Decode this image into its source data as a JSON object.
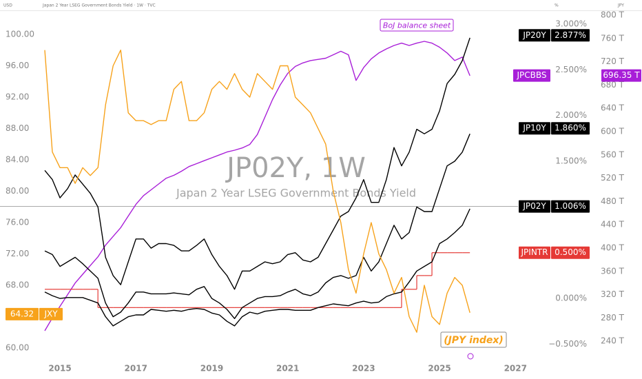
{
  "header": {
    "symbol_text": "Japan 2 Year LSEG Government Bonds Yield · 1W · TVC",
    "left_unit": "USD",
    "mid_unit": "%",
    "right_unit": "JPY"
  },
  "chart_data": {
    "type": "line",
    "title": "JP02Y, 1W",
    "subtitle": "Japan 2 Year LSEG Government Bonds Yield",
    "grid": false,
    "x": [
      2014.6,
      2014.8,
      2015.0,
      2015.2,
      2015.4,
      2015.6,
      2015.8,
      2016.0,
      2016.2,
      2016.4,
      2016.6,
      2016.8,
      2017.0,
      2017.2,
      2017.4,
      2017.6,
      2017.8,
      2018.0,
      2018.2,
      2018.4,
      2018.6,
      2018.8,
      2019.0,
      2019.2,
      2019.4,
      2019.6,
      2019.8,
      2020.0,
      2020.2,
      2020.4,
      2020.6,
      2020.8,
      2021.0,
      2021.2,
      2021.4,
      2021.6,
      2021.8,
      2022.0,
      2022.2,
      2022.4,
      2022.6,
      2022.8,
      2023.0,
      2023.2,
      2023.4,
      2023.6,
      2023.8,
      2024.0,
      2024.2,
      2024.4,
      2024.6,
      2024.8,
      2025.0,
      2025.2,
      2025.4,
      2025.6,
      2025.8
    ],
    "xlim": [
      2013.42,
      2028.12
    ],
    "xticks": [
      2015,
      2017,
      2019,
      2021,
      2023,
      2025,
      2027
    ],
    "ylim": [
      58.68,
      103.16
    ],
    "yticks": [
      {
        "value": 60,
        "label": "60.00"
      },
      {
        "value": 64,
        "label": "64.00"
      },
      {
        "value": 68,
        "label": "68.00"
      },
      {
        "value": 72,
        "label": "72.00"
      },
      {
        "value": 76,
        "label": "76.00"
      },
      {
        "value": 80,
        "label": "80.00"
      },
      {
        "value": 84,
        "label": "84.00"
      },
      {
        "value": 88,
        "label": "88.00"
      },
      {
        "value": 92,
        "label": "92.00"
      },
      {
        "value": 96,
        "label": "96.00"
      },
      {
        "value": 100,
        "label": "100.00"
      }
    ],
    "y2lim": [
      -0.655,
      3.158
    ],
    "y2ticks": [
      {
        "value": 3,
        "label": "3.000%"
      },
      {
        "value": 2.5,
        "label": "2.500%"
      },
      {
        "value": 2,
        "label": "2.000%"
      },
      {
        "value": 1.5,
        "label": "1.500%"
      },
      {
        "value": 0,
        "label": "0.000%"
      },
      {
        "value": -0.5,
        "label": "−0.500%"
      }
    ],
    "y3lim": [
      210.6,
      809.5
    ],
    "y3ticks": [
      {
        "value": 800,
        "label": "800 T"
      },
      {
        "value": 760,
        "label": "760 T"
      },
      {
        "value": 720,
        "label": "720 T"
      },
      {
        "value": 680,
        "label": "680 T"
      },
      {
        "value": 640,
        "label": "640 T"
      },
      {
        "value": 600,
        "label": "600 T"
      },
      {
        "value": 560,
        "label": "560 T"
      },
      {
        "value": 520,
        "label": "520 T"
      },
      {
        "value": 480,
        "label": "480 T"
      },
      {
        "value": 440,
        "label": "440 T"
      },
      {
        "value": 400,
        "label": "400 T"
      },
      {
        "value": 360,
        "label": "360 T"
      },
      {
        "value": 320,
        "label": "320 T"
      },
      {
        "value": 280,
        "label": "280 T"
      },
      {
        "value": 240,
        "label": "240 T"
      }
    ],
    "series": [
      {
        "name": "JPCBBS",
        "color": "#a81ed8",
        "axis": "y3",
        "last_value": 696.35,
        "last_value_label": "696.35 T",
        "values": [
          258,
          280,
          300,
          320,
          340,
          355,
          370,
          385,
          405,
          420,
          435,
          455,
          475,
          490,
          500,
          510,
          520,
          525,
          532,
          540,
          545,
          550,
          555,
          560,
          565,
          568,
          572,
          578,
          595,
          625,
          655,
          680,
          700,
          712,
          718,
          722,
          724,
          726,
          732,
          738,
          732,
          688,
          710,
          725,
          735,
          742,
          748,
          752,
          748,
          752,
          755,
          752,
          745,
          735,
          722,
          728,
          696
        ]
      },
      {
        "name": "JPINTR",
        "color": "#e53935",
        "axis": "y2",
        "step": true,
        "last_value": 0.5,
        "last_value_label": "0.500%",
        "values": [
          0.1,
          0.1,
          0.1,
          0.1,
          0.1,
          0.1,
          0.1,
          0.1,
          -0.1,
          -0.1,
          -0.1,
          -0.1,
          -0.1,
          -0.1,
          -0.1,
          -0.1,
          -0.1,
          -0.1,
          -0.1,
          -0.1,
          -0.1,
          -0.1,
          -0.1,
          -0.1,
          -0.1,
          -0.1,
          -0.1,
          -0.1,
          -0.1,
          -0.1,
          -0.1,
          -0.1,
          -0.1,
          -0.1,
          -0.1,
          -0.1,
          -0.1,
          -0.1,
          -0.1,
          -0.1,
          -0.1,
          -0.1,
          -0.1,
          -0.1,
          -0.1,
          -0.1,
          -0.1,
          -0.1,
          0.1,
          0.1,
          0.25,
          0.25,
          0.5,
          0.5,
          0.5,
          0.5,
          0.5
        ]
      },
      {
        "name": "JP20Y",
        "color": "#000000",
        "axis": "y2",
        "last_value": 2.877,
        "last_value_label": "2.877%",
        "values": [
          1.4,
          1.3,
          1.1,
          1.2,
          1.35,
          1.25,
          1.15,
          1.0,
          0.45,
          0.25,
          0.15,
          0.4,
          0.65,
          0.65,
          0.55,
          0.6,
          0.6,
          0.58,
          0.52,
          0.52,
          0.58,
          0.65,
          0.48,
          0.35,
          0.25,
          0.1,
          0.3,
          0.3,
          0.35,
          0.4,
          0.38,
          0.4,
          0.48,
          0.5,
          0.42,
          0.4,
          0.45,
          0.6,
          0.75,
          0.9,
          0.95,
          1.1,
          1.3,
          1.05,
          1.05,
          1.3,
          1.65,
          1.45,
          1.6,
          1.85,
          1.8,
          1.85,
          2.05,
          2.35,
          2.45,
          2.6,
          2.85
        ]
      },
      {
        "name": "JP10Y",
        "color": "#000000",
        "axis": "y2",
        "last_value": 1.86,
        "last_value_label": "1.860%",
        "values": [
          0.52,
          0.48,
          0.35,
          0.4,
          0.45,
          0.38,
          0.3,
          0.22,
          -0.05,
          -0.2,
          -0.15,
          -0.05,
          0.07,
          0.07,
          0.05,
          0.05,
          0.05,
          0.06,
          0.05,
          0.04,
          0.1,
          0.13,
          0.0,
          -0.05,
          -0.12,
          -0.22,
          -0.1,
          -0.05,
          0.0,
          0.02,
          0.02,
          0.03,
          0.07,
          0.1,
          0.05,
          0.03,
          0.07,
          0.17,
          0.23,
          0.25,
          0.22,
          0.25,
          0.45,
          0.3,
          0.4,
          0.6,
          0.8,
          0.65,
          0.72,
          1.0,
          0.95,
          0.95,
          1.2,
          1.45,
          1.5,
          1.6,
          1.8
        ]
      },
      {
        "name": "JP02Y",
        "color": "#000000",
        "axis": "y2",
        "last_value": 1.006,
        "last_value_label": "1.006%",
        "values": [
          0.07,
          0.03,
          0.0,
          0.01,
          0.01,
          0.01,
          -0.02,
          -0.05,
          -0.2,
          -0.3,
          -0.25,
          -0.2,
          -0.18,
          -0.18,
          -0.12,
          -0.13,
          -0.14,
          -0.13,
          -0.14,
          -0.12,
          -0.11,
          -0.12,
          -0.16,
          -0.18,
          -0.25,
          -0.3,
          -0.2,
          -0.15,
          -0.17,
          -0.14,
          -0.13,
          -0.12,
          -0.12,
          -0.13,
          -0.13,
          -0.13,
          -0.1,
          -0.08,
          -0.06,
          -0.07,
          -0.08,
          -0.05,
          -0.03,
          -0.05,
          -0.04,
          0.02,
          0.05,
          0.07,
          0.18,
          0.3,
          0.35,
          0.4,
          0.6,
          0.65,
          0.72,
          0.8,
          0.98
        ]
      },
      {
        "name": "JXY",
        "color": "#f7a21b",
        "last_value": 64.32,
        "values": [
          98,
          85,
          83,
          83,
          81,
          83,
          82,
          83,
          91,
          96,
          98,
          90,
          89,
          89,
          88.5,
          89,
          89,
          93,
          94,
          89,
          89,
          90,
          93,
          94,
          93,
          95,
          93,
          92,
          95,
          94,
          93,
          96,
          96,
          92,
          91,
          90,
          88,
          86,
          80,
          76,
          70,
          67,
          72,
          76,
          72,
          70,
          67,
          69,
          64,
          62,
          68,
          64,
          63,
          67,
          69,
          68,
          64.5
        ]
      }
    ],
    "annotations": [
      {
        "text": "BoJ balance sheet",
        "color": "#a81ed8"
      },
      {
        "text": "(JPY index)",
        "color": "#f7a21b"
      }
    ]
  }
}
